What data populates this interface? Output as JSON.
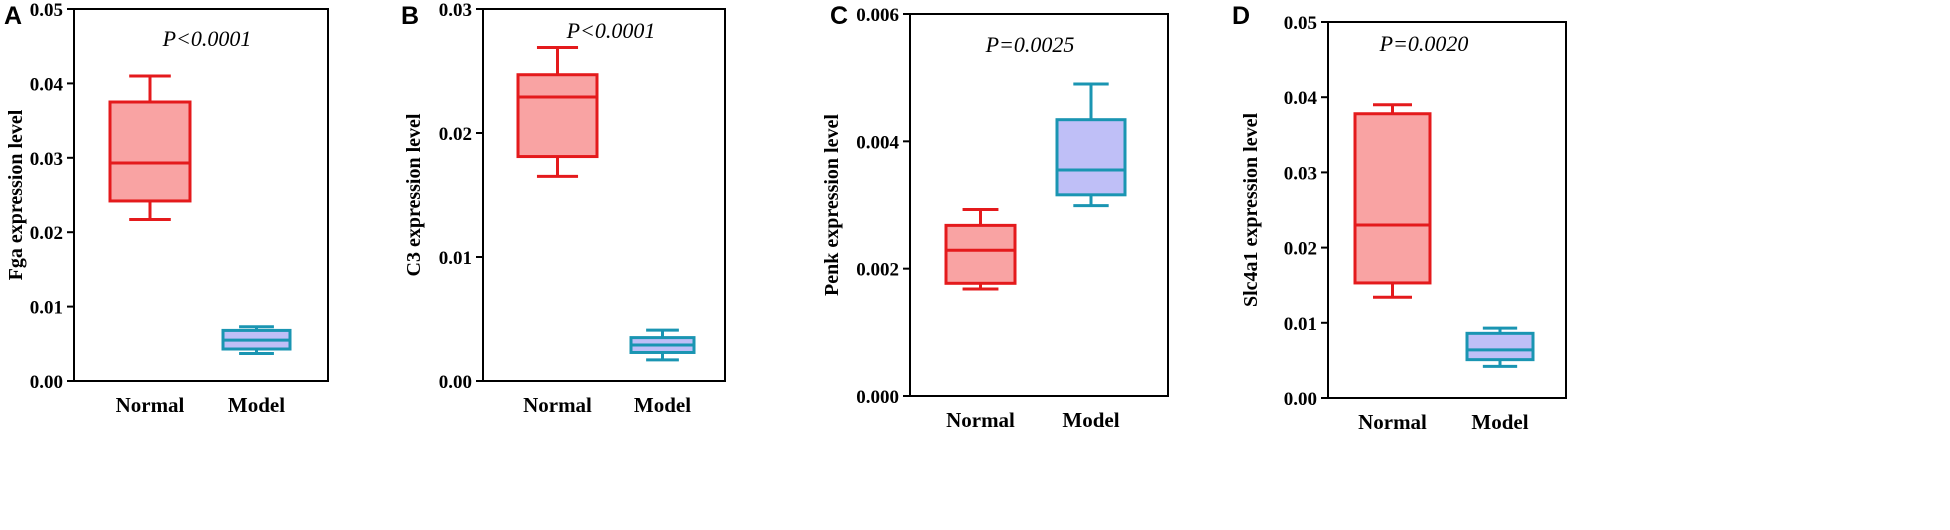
{
  "colors": {
    "normal_stroke": "#e41a1c",
    "normal_fill": "#f9a3a3",
    "model_stroke": "#1a95b2",
    "model_fill": "#bfbff7",
    "axis": "#000000"
  },
  "chart_data": [
    {
      "type": "box",
      "panel": "A",
      "ylabel": "Fga expression level",
      "annotation": "P<0.0001",
      "ylim": [
        0,
        0.05
      ],
      "yticks": [
        0,
        0.01,
        0.02,
        0.03,
        0.04,
        0.05
      ],
      "ytick_labels": [
        "0.00",
        "0.01",
        "0.02",
        "0.03",
        "0.04",
        "0.05"
      ],
      "categories": [
        "Normal",
        "Model"
      ],
      "series": [
        {
          "name": "Normal",
          "min": 0.0217,
          "q1": 0.0242,
          "median": 0.0293,
          "q3": 0.0375,
          "max": 0.041
        },
        {
          "name": "Model",
          "min": 0.0037,
          "q1": 0.0043,
          "median": 0.0055,
          "q3": 0.0068,
          "max": 0.0073
        }
      ]
    },
    {
      "type": "box",
      "panel": "B",
      "ylabel": "C3 expression level",
      "annotation": "P<0.0001",
      "ylim": [
        0,
        0.03
      ],
      "yticks": [
        0,
        0.01,
        0.02,
        0.03
      ],
      "ytick_labels": [
        "0.00",
        "0.01",
        "0.02",
        "0.03"
      ],
      "categories": [
        "Normal",
        "Model"
      ],
      "series": [
        {
          "name": "Normal",
          "min": 0.0165,
          "q1": 0.0181,
          "median": 0.0229,
          "q3": 0.0247,
          "max": 0.0269
        },
        {
          "name": "Model",
          "min": 0.0017,
          "q1": 0.0023,
          "median": 0.0029,
          "q3": 0.0035,
          "max": 0.0041
        }
      ]
    },
    {
      "type": "box",
      "panel": "C",
      "ylabel": "Penk expression level",
      "annotation": "P=0.0025",
      "ylim": [
        0,
        0.006
      ],
      "yticks": [
        0,
        0.002,
        0.004,
        0.006
      ],
      "ytick_labels": [
        "0.000",
        "0.002",
        "0.004",
        "0.006"
      ],
      "categories": [
        "Normal",
        "Model"
      ],
      "series": [
        {
          "name": "Normal",
          "min": 0.00168,
          "q1": 0.00177,
          "median": 0.00229,
          "q3": 0.00268,
          "max": 0.00293
        },
        {
          "name": "Model",
          "min": 0.00299,
          "q1": 0.00316,
          "median": 0.00355,
          "q3": 0.00434,
          "max": 0.0049
        }
      ]
    },
    {
      "type": "box",
      "panel": "D",
      "ylabel": "Slc4a1 expression level",
      "annotation": "P=0.0020",
      "ylim": [
        0,
        0.05
      ],
      "yticks": [
        0,
        0.01,
        0.02,
        0.03,
        0.04,
        0.05
      ],
      "ytick_labels": [
        "0.00",
        "0.01",
        "0.02",
        "0.03",
        "0.04",
        "0.05"
      ],
      "categories": [
        "Normal",
        "Model"
      ],
      "series": [
        {
          "name": "Normal",
          "min": 0.0134,
          "q1": 0.0153,
          "median": 0.023,
          "q3": 0.0378,
          "max": 0.039
        },
        {
          "name": "Model",
          "min": 0.0042,
          "q1": 0.0051,
          "median": 0.0064,
          "q3": 0.0086,
          "max": 0.0093
        }
      ]
    }
  ]
}
